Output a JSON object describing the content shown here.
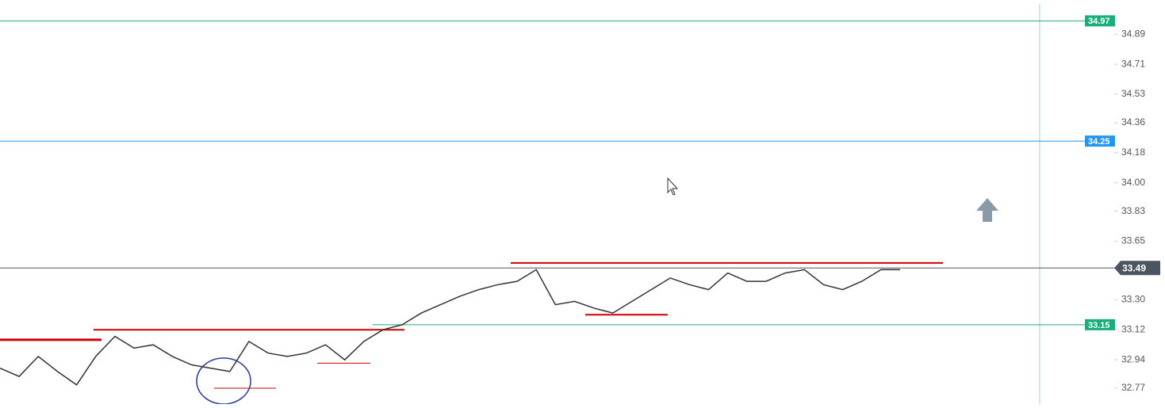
{
  "chart_data": {
    "type": "line",
    "values": [
      32.89,
      32.84,
      32.96,
      32.87,
      32.79,
      32.96,
      33.08,
      33.01,
      33.03,
      32.96,
      32.91,
      32.89,
      32.87,
      33.05,
      32.98,
      32.96,
      32.98,
      33.03,
      32.94,
      33.05,
      33.12,
      33.15,
      33.22,
      33.27,
      33.32,
      33.36,
      33.39,
      33.41,
      33.48,
      33.27,
      33.29,
      33.25,
      33.22,
      33.29,
      33.36,
      33.43,
      33.39,
      33.36,
      33.46,
      33.41,
      33.41,
      33.46,
      33.48,
      33.39,
      33.36,
      33.41,
      33.48,
      33.48
    ],
    "color": "#333333",
    "ylim": [
      32.675,
      35.095
    ],
    "yticks": [
      34.89,
      34.71,
      34.53,
      34.36,
      34.18,
      {
        "value": 34.0,
        "label": "34.00"
      },
      33.83,
      33.65,
      {
        "value": 33.3,
        "label": "33.30"
      },
      33.12,
      32.94,
      32.77
    ],
    "price_levels": [
      {
        "value": 34.97,
        "color": "#18b07a"
      },
      {
        "value": 34.25,
        "color": "#2196f3"
      },
      {
        "value": 33.15,
        "color": "#18b07a"
      },
      {
        "value": 33.49,
        "color": "#4b5561"
      }
    ],
    "drawn_levels": [
      33.52,
      33.12,
      33.06,
      33.21,
      32.92,
      32.77
    ],
    "drawn_color": "#cc0000"
  }
}
